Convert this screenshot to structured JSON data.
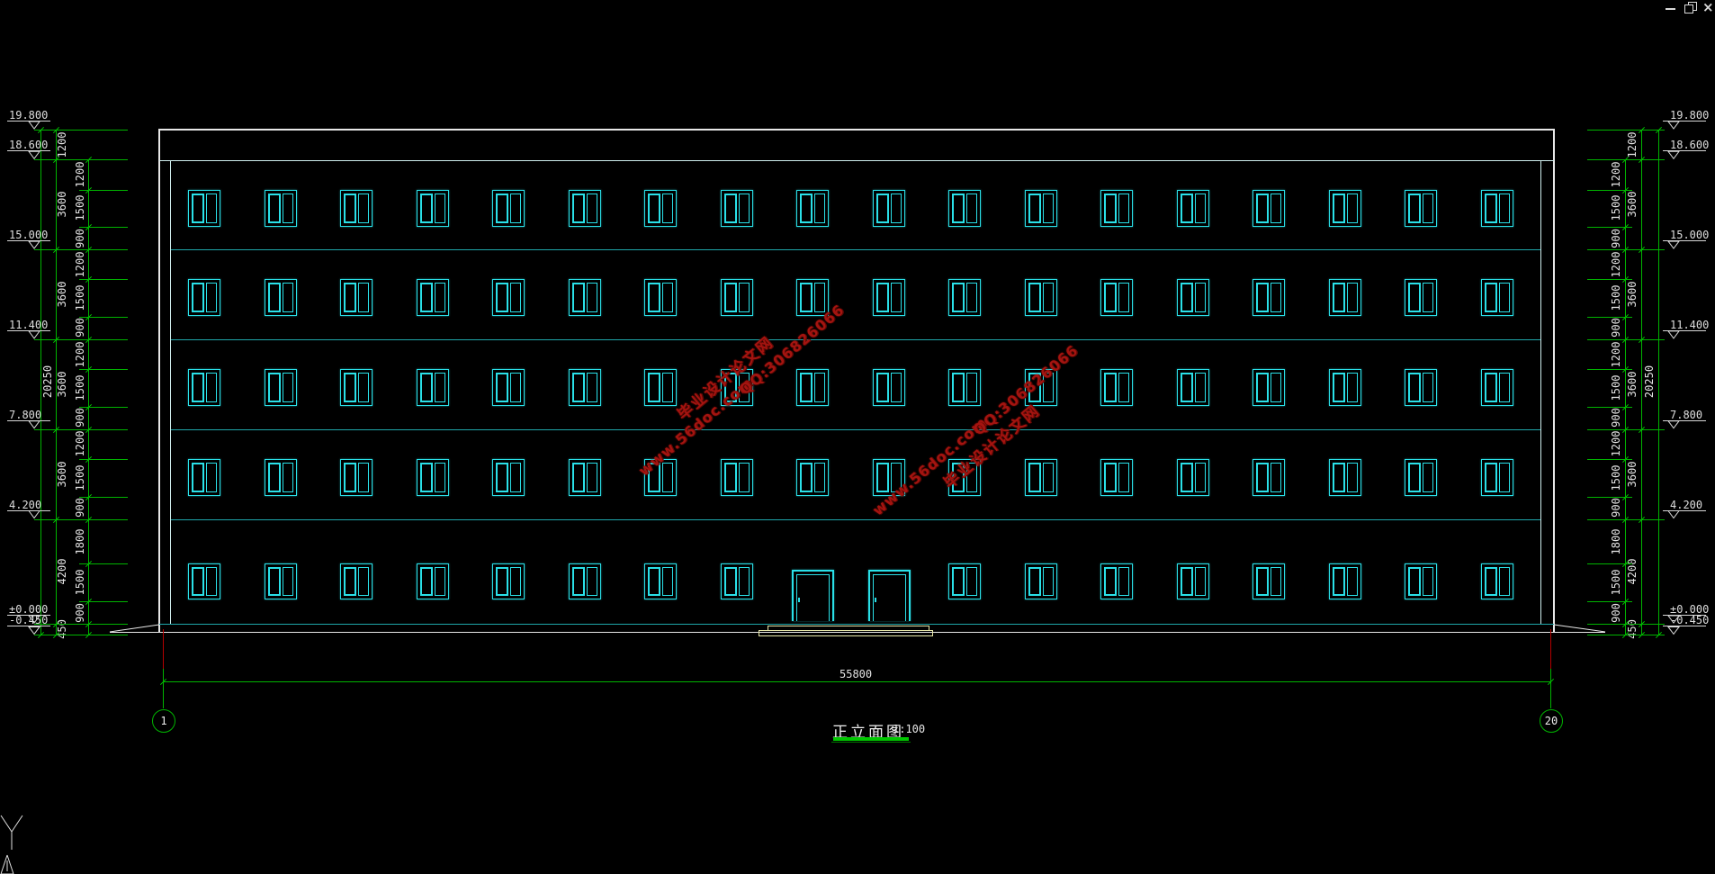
{
  "title_block": {
    "title": "正立面图",
    "scale": "1:100"
  },
  "grid": {
    "left_bubble": "1",
    "right_bubble": "20"
  },
  "dimensions": {
    "total_width": "55800",
    "total_height": "20250",
    "floor_heights": [
      "1200",
      "3600",
      "3600",
      "3600",
      "3600",
      "4200",
      "450"
    ],
    "detail_heights": [
      "1200",
      "1500",
      "900",
      "1200",
      "1500",
      "900",
      "1200",
      "1500",
      "900",
      "1200",
      "1500",
      "900",
      "1800",
      "1500",
      "900"
    ],
    "elevations": [
      {
        "label": "19.800",
        "mm": 19800
      },
      {
        "label": "18.600",
        "mm": 18600
      },
      {
        "label": "15.000",
        "mm": 15000
      },
      {
        "label": "11.400",
        "mm": 11400
      },
      {
        "label": "7.800",
        "mm": 7800
      },
      {
        "label": "4.200",
        "mm": 4200
      },
      {
        "label": "±0.000",
        "mm": 0
      },
      {
        "label": "-0.450",
        "mm": -450
      }
    ]
  },
  "facade": {
    "floors": 5,
    "windows_per_row": 18,
    "door_positions": [
      9,
      10
    ]
  },
  "watermark": {
    "site": "www.56doc.com",
    "qq": "QQ:306826066",
    "brand": "毕业设计论文网"
  },
  "window_controls": {
    "icons": [
      "minimize-icon",
      "restore-icon",
      "close-icon"
    ]
  },
  "colors": {
    "window_cyan": "#2ae0e8",
    "floor_teal": "#1fa6aa",
    "outline_white": "#e8e8e8",
    "dim_green": "#00b400",
    "watermark_red": "#a41410",
    "step_yellow": "#e9e9a9",
    "grid_red": "#b40000"
  }
}
